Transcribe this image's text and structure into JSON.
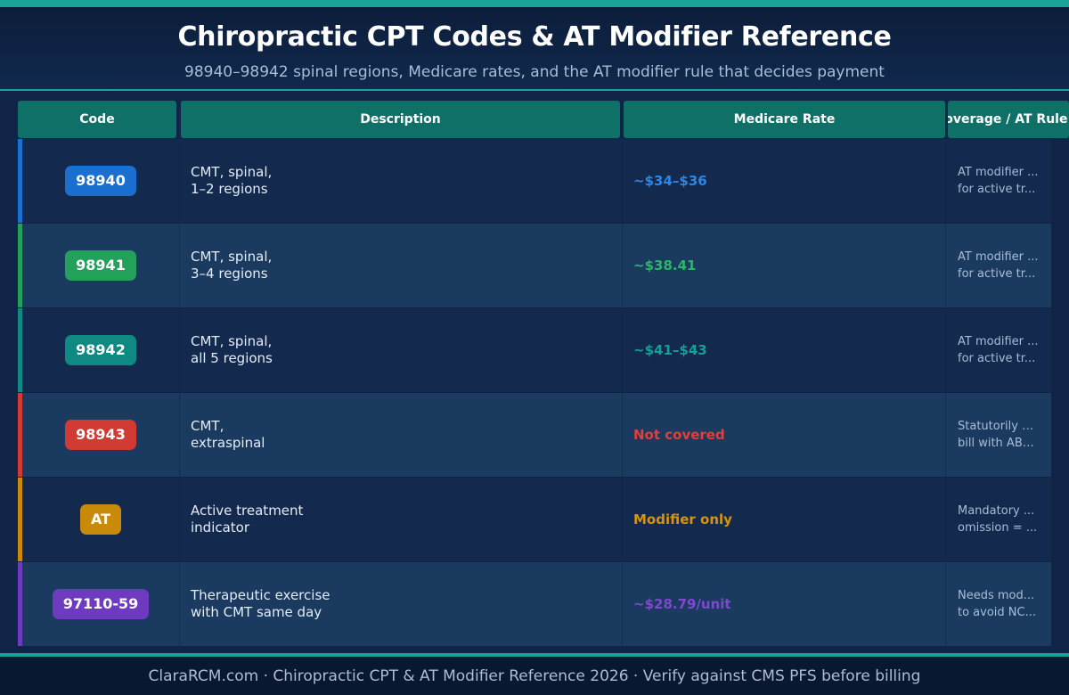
{
  "header": {
    "title": "Chiropractic CPT Codes & AT Modifier Reference",
    "subtitle": "98940–98942 spinal regions, Medicare rates, and the AT modifier rule that decides payment"
  },
  "columns": {
    "code": "Code",
    "description": "Description",
    "rate": "Medicare Rate",
    "coverage": "Coverage / AT Rule"
  },
  "rows": [
    {
      "code": "98940",
      "color": "#1a6fd0",
      "desc1": "CMT, spinal,",
      "desc2": "1–2 regions",
      "rate": "~$34–$36",
      "rate_color": "#2f86e0",
      "cov1": "AT modifier ...",
      "cov2": "for active tr..."
    },
    {
      "code": "98941",
      "color": "#23a05a",
      "desc1": "CMT, spinal,",
      "desc2": "3–4 regions",
      "rate": "~$38.41",
      "rate_color": "#2bb56a",
      "cov1": "AT modifier ...",
      "cov2": "for active tr..."
    },
    {
      "code": "98942",
      "color": "#0f8a83",
      "desc1": "CMT, spinal,",
      "desc2": "all 5 regions",
      "rate": "~$41–$43",
      "rate_color": "#14a096",
      "cov1": "AT modifier ...",
      "cov2": "for active tr..."
    },
    {
      "code": "98943",
      "color": "#d23b33",
      "desc1": "CMT,",
      "desc2": "extraspinal",
      "rate": "Not covered",
      "rate_color": "#df4038",
      "cov1": "Statutorily e...",
      "cov2": "bill with ABN..."
    },
    {
      "code": "AT",
      "color": "#c98a0c",
      "desc1": "Active treatment",
      "desc2": "indicator",
      "rate": "Modifier only",
      "rate_color": "#d6940e",
      "cov1": "Mandatory ...",
      "cov2": "omission = ..."
    },
    {
      "code": "97110-59",
      "color": "#6d3ac0",
      "desc1": "Therapeutic exercise",
      "desc2": "with CMT same day",
      "rate": "~$28.79/unit",
      "rate_color": "#8147cf",
      "cov1": "Needs mod...",
      "cov2": "to avoid NC..."
    }
  ],
  "footer": {
    "text": "ClaraRCM.com · Chiropractic CPT & AT Modifier Reference 2026 · Verify against CMS PFS before billing"
  }
}
